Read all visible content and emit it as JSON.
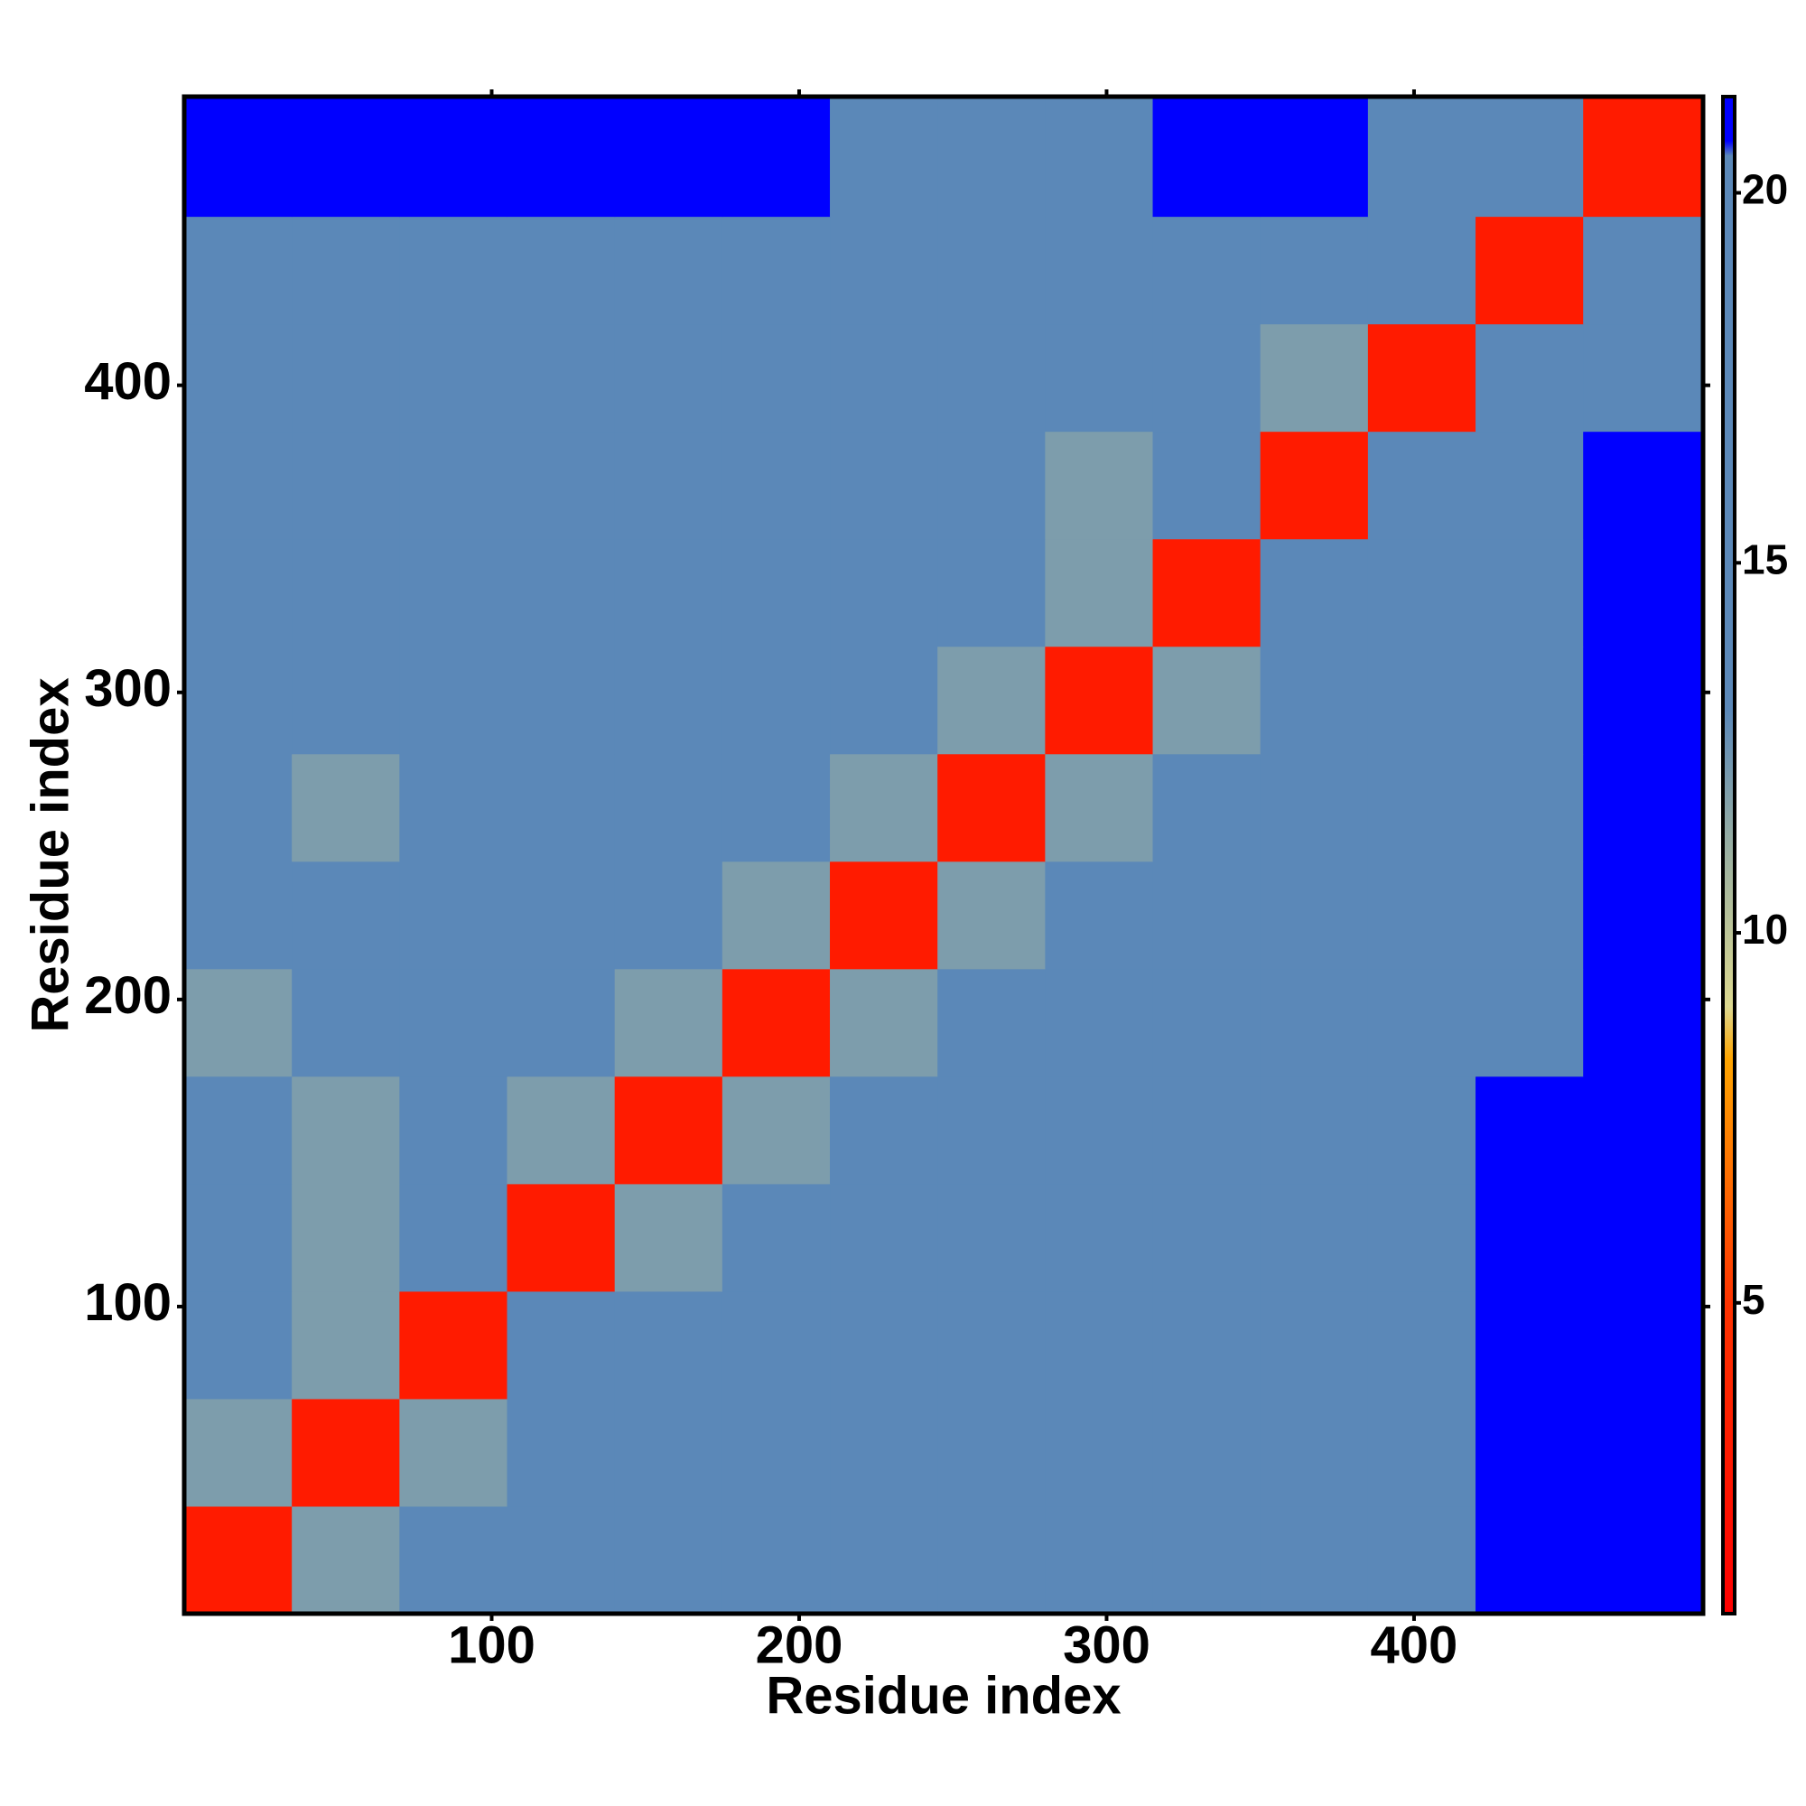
{
  "chart_data": {
    "type": "heatmap",
    "x_label": "Residue index",
    "y_label": "Residue index",
    "xlim": [
      0,
      494
    ],
    "ylim": [
      0,
      494
    ],
    "xticks": [
      100,
      200,
      300,
      400
    ],
    "yticks": [
      100,
      200,
      300,
      400
    ],
    "x_bins": [
      0,
      35,
      70,
      105,
      140,
      175,
      210,
      245,
      280,
      315,
      350,
      385,
      420,
      455,
      494
    ],
    "y_bins": [
      0,
      35,
      70,
      105,
      140,
      175,
      210,
      245,
      280,
      315,
      350,
      385,
      420,
      455,
      494
    ],
    "z": [
      [
        3,
        12,
        17,
        18,
        18,
        17,
        17,
        16,
        14,
        17,
        18,
        19,
        21,
        21
      ],
      [
        12,
        3,
        12,
        14,
        18,
        14,
        17,
        13,
        14,
        17,
        18,
        19,
        21,
        21
      ],
      [
        16,
        12,
        3,
        19,
        14,
        17,
        17,
        13,
        17,
        19,
        18,
        18,
        21,
        21
      ],
      [
        17,
        12,
        19,
        3,
        12,
        18,
        17,
        17,
        17,
        18,
        18,
        19,
        21,
        21
      ],
      [
        14,
        12,
        13,
        12,
        3,
        12,
        16,
        18,
        17,
        18,
        19,
        18,
        21,
        21
      ],
      [
        12,
        16,
        18,
        13,
        12,
        3,
        12,
        19,
        19,
        19,
        20,
        18,
        20,
        21
      ],
      [
        17,
        13,
        14,
        18,
        17,
        12,
        3,
        12,
        19,
        20,
        19,
        17,
        17,
        21
      ],
      [
        16,
        12,
        14,
        18,
        18,
        19,
        12,
        3,
        12,
        19,
        17,
        13,
        17,
        21
      ],
      [
        13,
        14,
        17,
        18,
        17,
        19,
        19,
        12,
        3,
        12,
        14,
        15,
        17,
        21
      ],
      [
        17,
        17,
        18,
        19,
        18,
        20,
        19,
        19,
        12,
        3,
        19,
        14,
        17,
        21
      ],
      [
        17,
        17,
        18,
        18,
        19,
        20,
        18,
        17,
        12,
        19,
        3,
        19,
        14,
        21
      ],
      [
        19,
        17,
        18,
        19,
        18,
        19,
        17,
        13,
        15,
        14,
        12,
        3,
        13,
        20
      ],
      [
        20,
        18,
        19,
        20,
        19,
        20,
        17,
        14,
        18,
        17,
        13,
        13,
        3,
        14
      ],
      [
        21,
        21,
        21,
        21,
        21,
        21,
        20,
        19,
        20,
        21,
        21,
        20,
        14,
        3
      ]
    ],
    "colorbar": {
      "lim": [
        0.8,
        21.3
      ],
      "ticks": [
        5,
        10,
        15,
        20
      ]
    },
    "colorscale": [
      [
        0.8,
        "#ff0000"
      ],
      [
        5,
        "#ff3300"
      ],
      [
        8.3,
        "#ffa500"
      ],
      [
        9,
        "#dcd890"
      ],
      [
        11,
        "#9eb2a0"
      ],
      [
        13,
        "#5b88b8"
      ],
      [
        20.5,
        "#5b88b8"
      ],
      [
        20.7,
        "#0000ff"
      ],
      [
        21.3,
        "#0000ff"
      ]
    ]
  }
}
